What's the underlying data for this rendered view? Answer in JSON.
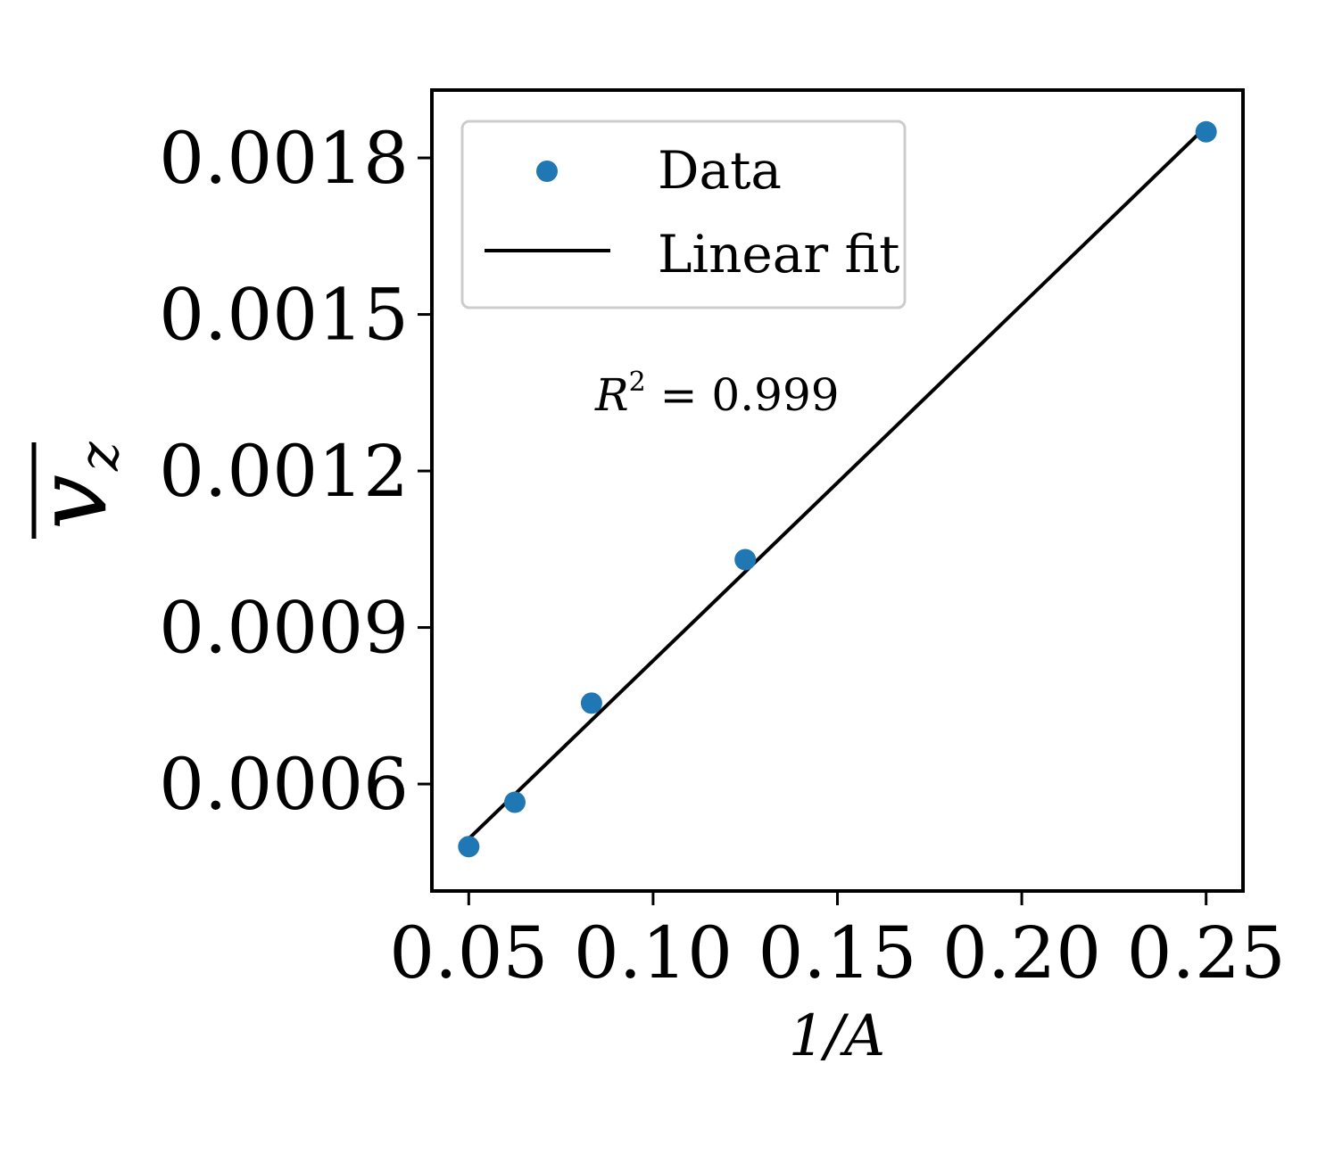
{
  "chart_data": {
    "type": "scatter",
    "xlabel": "1/A",
    "ylabel": "v̄_z",
    "ylabel_main": "v",
    "ylabel_sub": "z",
    "xlim": [
      0.04,
      0.26
    ],
    "ylim": [
      0.000395,
      0.00193
    ],
    "x_ticks": [
      0.05,
      0.1,
      0.15,
      0.2,
      0.25
    ],
    "x_tick_labels": [
      "0.05",
      "0.10",
      "0.15",
      "0.20",
      "0.25"
    ],
    "y_ticks": [
      0.0006,
      0.0009,
      0.0012,
      0.0015,
      0.0018
    ],
    "y_tick_labels": [
      "0.0006",
      "0.0009",
      "0.0012",
      "0.0015",
      "0.0018"
    ],
    "grid": false,
    "legend_position": "top-left",
    "series": [
      {
        "name": "Data",
        "kind": "scatter",
        "color": "#1f77b4",
        "x": [
          0.05,
          0.0625,
          0.0833,
          0.125,
          0.25
        ],
        "y": [
          0.00048,
          0.000565,
          0.000755,
          0.00103,
          0.00185
        ]
      },
      {
        "name": "Linear fit",
        "kind": "line",
        "color": "#000000",
        "x": [
          0.05,
          0.25
        ],
        "y": [
          0.000495,
          0.00186
        ]
      }
    ],
    "annotations": [
      {
        "text_main": "R",
        "text_sup": "2",
        "text_rest": " = 0.999"
      }
    ]
  }
}
